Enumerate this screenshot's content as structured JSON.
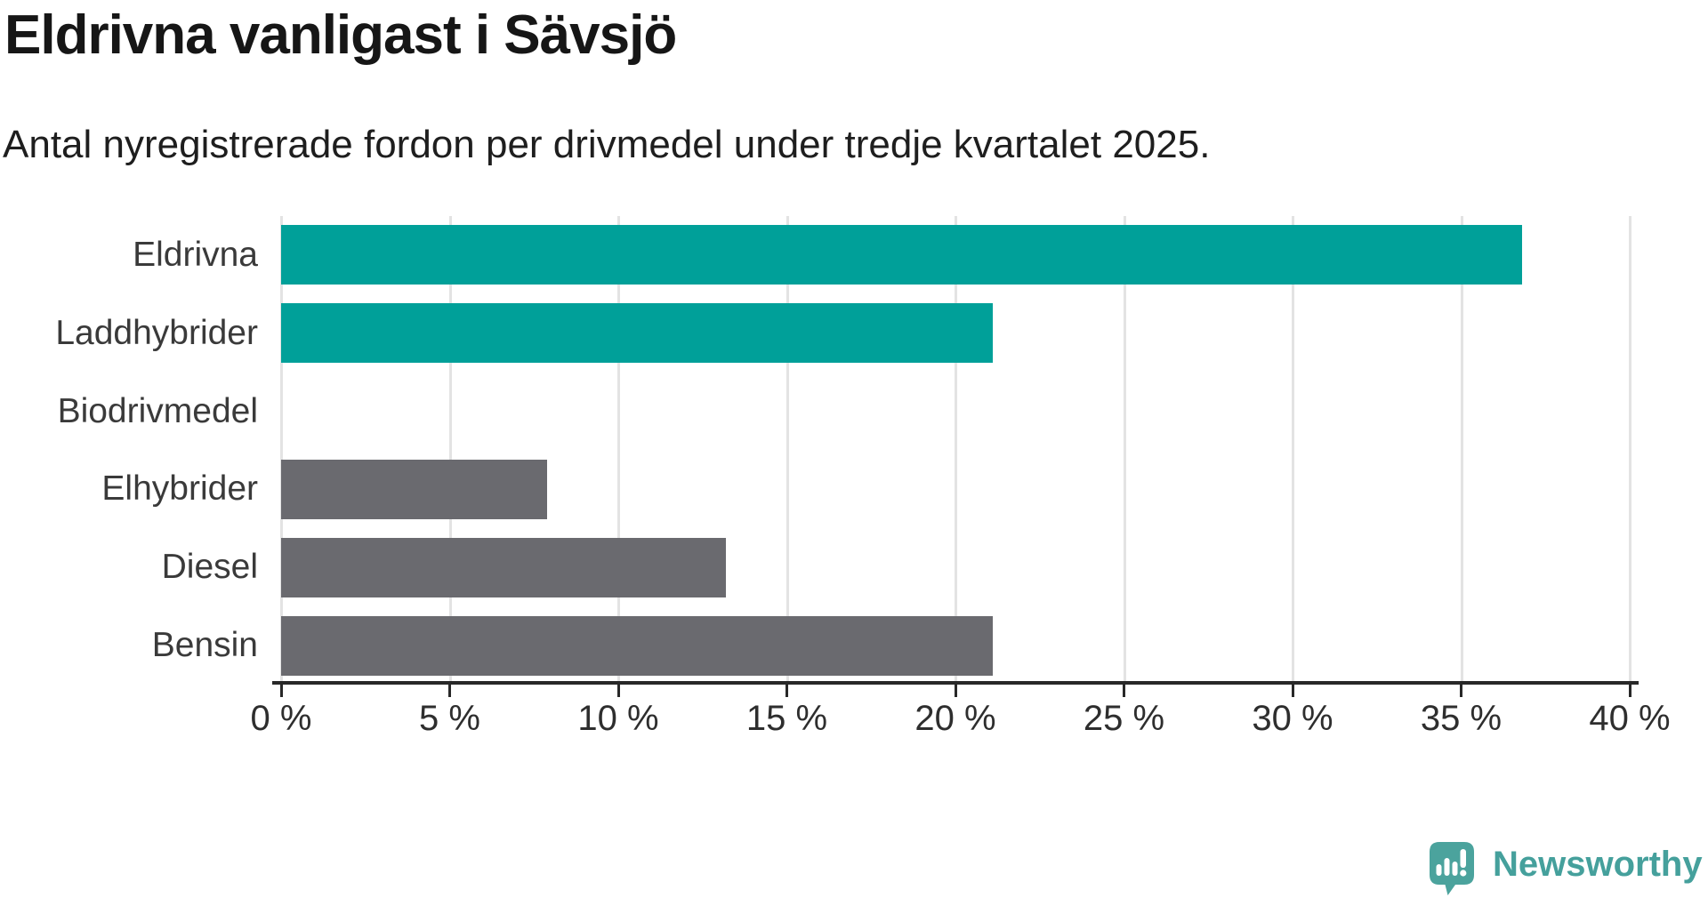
{
  "chart_data": {
    "type": "bar",
    "orientation": "horizontal",
    "title": "Eldrivna vanligast i Sävsjö",
    "subtitle": "Antal nyregistrerade fordon per drivmedel under tredje kvartalet 2025.",
    "categories": [
      "Eldrivna",
      "Laddhybrider",
      "Biodrivmedel",
      "Elhybrider",
      "Diesel",
      "Bensin"
    ],
    "values": [
      36.8,
      21.1,
      0,
      7.9,
      13.2,
      21.1
    ],
    "unit": "%",
    "xlim": [
      0,
      40
    ],
    "xtick_step": 5,
    "xtick_labels": [
      "0 %",
      "5 %",
      "10 %",
      "15 %",
      "20 %",
      "25 %",
      "30 %",
      "35 %",
      "40 %"
    ],
    "bar_colors": [
      "#00a099",
      "#00a099",
      "#00a099",
      "#6a6a6f",
      "#6a6a6f",
      "#6a6a6f"
    ],
    "colors": {
      "highlight": "#00a099",
      "muted": "#6a6a6f",
      "gridline": "#e3e3e3",
      "axis": "#282828"
    },
    "grid": "vertical-only",
    "legend": "none",
    "value_labels": "none"
  },
  "branding": {
    "logo_text": "Newsworthy",
    "logo_color": "#45a09c",
    "logo_icon": "speech-bubble-bar-chart-icon"
  }
}
